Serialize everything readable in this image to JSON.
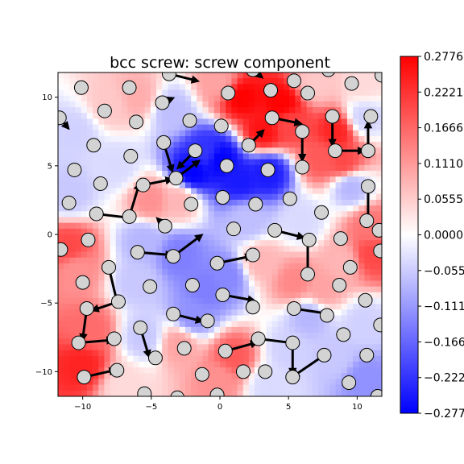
{
  "chart_data": {
    "type": "heatmap",
    "title": "bcc screw: screw component",
    "xlim": [
      -11.8,
      11.8
    ],
    "ylim": [
      -11.8,
      11.8
    ],
    "x_ticks": [
      -10,
      -5,
      0,
      5,
      10
    ],
    "y_ticks": [
      10,
      5,
      0,
      -5,
      -10
    ],
    "x_tick_labels": [
      "−10",
      "−5",
      "0",
      "5",
      "10"
    ],
    "y_tick_labels": [
      "10",
      "5",
      "0",
      "−5",
      "−10"
    ],
    "colorbar": {
      "cmap": "bwr",
      "vmin": -0.2776,
      "vmax": 0.2776,
      "ticks": [
        0.2776,
        0.2221,
        0.1666,
        0.111,
        0.0555,
        0.0,
        -0.0555,
        -0.111,
        -0.1666,
        -0.2221,
        -0.2776
      ],
      "tick_labels": [
        "0.2776",
        "0.2221",
        "0.1666",
        "0.1110",
        "0.0555",
        "0.0000",
        "−0.0555",
        "−0.1110",
        "−0.1666",
        "−0.2221",
        "−0.2776"
      ]
    },
    "colors": {
      "negative": "#0000ff",
      "zero": "#ffffff",
      "positive": "#ff0000",
      "atom_fill": "#d3d3d3",
      "arrow": "#000000"
    },
    "field_samples": [
      {
        "x": 1.5,
        "y": 10.0,
        "v": 0.277
      },
      {
        "x": 4.5,
        "y": 9.5,
        "v": 0.277
      },
      {
        "x": 3.2,
        "y": 7.5,
        "v": 0.26
      },
      {
        "x": 5.0,
        "y": 8.0,
        "v": 0.2
      },
      {
        "x": 8.5,
        "y": 7.5,
        "v": 0.24
      },
      {
        "x": 9.0,
        "y": 5.2,
        "v": 0.2
      },
      {
        "x": 7.5,
        "y": 5.5,
        "v": 0.18
      },
      {
        "x": 0.0,
        "y": 5.5,
        "v": -0.277
      },
      {
        "x": -2.0,
        "y": 4.5,
        "v": -0.277
      },
      {
        "x": 1.5,
        "y": 4.0,
        "v": -0.25
      },
      {
        "x": 3.5,
        "y": 4.5,
        "v": -0.25
      },
      {
        "x": -1.0,
        "y": 6.0,
        "v": -0.22
      },
      {
        "x": -5.0,
        "y": 2.5,
        "v": 0.12
      },
      {
        "x": -3.0,
        "y": 2.5,
        "v": 0.08
      },
      {
        "x": -11.0,
        "y": -1.0,
        "v": 0.2
      },
      {
        "x": -10.5,
        "y": -2.5,
        "v": 0.12
      },
      {
        "x": -3.0,
        "y": -1.5,
        "v": -0.14
      },
      {
        "x": -5.5,
        "y": -0.5,
        "v": -0.08
      },
      {
        "x": -1.0,
        "y": -4.0,
        "v": -0.14
      },
      {
        "x": 0.5,
        "y": -3.0,
        "v": -0.13
      },
      {
        "x": 2.0,
        "y": 1.0,
        "v": -0.07
      },
      {
        "x": 3.0,
        "y": -2.0,
        "v": 0.08
      },
      {
        "x": 5.5,
        "y": -3.5,
        "v": 0.13
      },
      {
        "x": 7.5,
        "y": -4.0,
        "v": 0.1
      },
      {
        "x": 9.0,
        "y": -2.0,
        "v": 0.08
      },
      {
        "x": 11.0,
        "y": 0.5,
        "v": 0.15
      },
      {
        "x": 11.0,
        "y": -1.5,
        "v": 0.2
      },
      {
        "x": 9.5,
        "y": 3.5,
        "v": -0.08
      },
      {
        "x": 10.5,
        "y": 8.5,
        "v": -0.05
      },
      {
        "x": 6.0,
        "y": 1.0,
        "v": -0.04
      },
      {
        "x": -10.0,
        "y": -9.5,
        "v": 0.24
      },
      {
        "x": -9.5,
        "y": -7.0,
        "v": 0.16
      },
      {
        "x": -3.0,
        "y": -8.0,
        "v": 0.1
      },
      {
        "x": -5.5,
        "y": -7.5,
        "v": -0.06
      },
      {
        "x": 1.0,
        "y": -9.0,
        "v": 0.18
      },
      {
        "x": 0.0,
        "y": -10.5,
        "v": 0.12
      },
      {
        "x": -2.0,
        "y": -6.0,
        "v": -0.12
      },
      {
        "x": 5.0,
        "y": -8.5,
        "v": -0.05
      },
      {
        "x": 6.5,
        "y": -6.0,
        "v": -0.08
      },
      {
        "x": 8.5,
        "y": -9.0,
        "v": -0.06
      },
      {
        "x": 10.5,
        "y": -10.5,
        "v": -0.12
      },
      {
        "x": 10.5,
        "y": -6.5,
        "v": -0.05
      },
      {
        "x": -8.0,
        "y": 9.5,
        "v": 0.06
      },
      {
        "x": -6.0,
        "y": 10.0,
        "v": 0.09
      },
      {
        "x": -3.5,
        "y": 9.0,
        "v": -0.07
      },
      {
        "x": -10.5,
        "y": 7.5,
        "v": -0.05
      },
      {
        "x": -11.0,
        "y": 3.0,
        "v": -0.06
      },
      {
        "x": -7.5,
        "y": 5.0,
        "v": -0.04
      },
      {
        "x": -6.0,
        "y": -3.5,
        "v": -0.06
      },
      {
        "x": 3.5,
        "y": -11.0,
        "v": -0.04
      },
      {
        "x": -7.0,
        "y": -11.0,
        "v": 0.04
      },
      {
        "x": 0.0,
        "y": 11.0,
        "v": 0.1
      },
      {
        "x": 7.0,
        "y": 11.0,
        "v": 0.06
      },
      {
        "x": 10.5,
        "y": 11.0,
        "v": 0.04
      }
    ],
    "atoms": [
      {
        "x": -10.1,
        "y": 10.7,
        "dx": 0,
        "dy": 0
      },
      {
        "x": -6.6,
        "y": 10.7,
        "dx": 0,
        "dy": 0
      },
      {
        "x": -3.7,
        "y": 11.7,
        "dx": 2.0,
        "dy": -0.5
      },
      {
        "x": 2.4,
        "y": 12.0,
        "dx": 0.6,
        "dy": -0.5
      },
      {
        "x": 5.4,
        "y": 11.2,
        "dx": 0,
        "dy": 0
      },
      {
        "x": 7.9,
        "y": 12.0,
        "dx": 0,
        "dy": 0
      },
      {
        "x": 9.6,
        "y": 11.0,
        "dx": 0,
        "dy": 0
      },
      {
        "x": 11.8,
        "y": 11.6,
        "dx": 0,
        "dy": 0
      },
      {
        "x": -11.7,
        "y": 8.5,
        "dx": 0.6,
        "dy": -0.7
      },
      {
        "x": -8.4,
        "y": 9.0,
        "dx": 0,
        "dy": 0
      },
      {
        "x": -4.2,
        "y": 9.6,
        "dx": 0.7,
        "dy": 0.3
      },
      {
        "x": 0.6,
        "y": 10.3,
        "dx": 0,
        "dy": 0
      },
      {
        "x": 3.7,
        "y": 10.5,
        "dx": 0,
        "dy": 0
      },
      {
        "x": 6.4,
        "y": 10.3,
        "dx": 0,
        "dy": 0
      },
      {
        "x": -6.1,
        "y": 8.2,
        "dx": 0,
        "dy": 0
      },
      {
        "x": -2.2,
        "y": 8.3,
        "dx": 0,
        "dy": 0
      },
      {
        "x": 0.1,
        "y": 7.9,
        "dx": 0,
        "dy": 0
      },
      {
        "x": 3.8,
        "y": 8.5,
        "dx": 2.0,
        "dy": -0.4
      },
      {
        "x": 8.2,
        "y": 8.6,
        "dx": 0,
        "dy": -2.0
      },
      {
        "x": 11.0,
        "y": 8.6,
        "dx": 0,
        "dy": 0
      },
      {
        "x": -9.2,
        "y": 6.5,
        "dx": 0,
        "dy": 0
      },
      {
        "x": -4.1,
        "y": 6.7,
        "dx": 0.6,
        "dy": -2.0
      },
      {
        "x": 2.1,
        "y": 6.5,
        "dx": 1.0,
        "dy": 1.0
      },
      {
        "x": 6.0,
        "y": 7.5,
        "dx": 0,
        "dy": -2.0
      },
      {
        "x": -10.6,
        "y": 4.7,
        "dx": 0,
        "dy": 0
      },
      {
        "x": -6.5,
        "y": 5.7,
        "dx": 0,
        "dy": 0
      },
      {
        "x": -1.8,
        "y": 6.1,
        "dx": -1.2,
        "dy": -1.2
      },
      {
        "x": 0.5,
        "y": 5.0,
        "dx": 0,
        "dy": 0
      },
      {
        "x": 3.5,
        "y": 4.7,
        "dx": 0,
        "dy": 0
      },
      {
        "x": 6.0,
        "y": 4.9,
        "dx": 0,
        "dy": 0
      },
      {
        "x": 8.4,
        "y": 6.1,
        "dx": 2.0,
        "dy": 0
      },
      {
        "x": 10.8,
        "y": 6.1,
        "dx": 0,
        "dy": 2.0
      },
      {
        "x": -8.7,
        "y": 3.7,
        "dx": 0,
        "dy": 0
      },
      {
        "x": -5.6,
        "y": 3.6,
        "dx": 2.0,
        "dy": 0.4
      },
      {
        "x": -3.2,
        "y": 4.1,
        "dx": 1.6,
        "dy": 1.2
      },
      {
        "x": 0.2,
        "y": 2.7,
        "dx": 0,
        "dy": 0
      },
      {
        "x": 2.6,
        "y": 2.2,
        "dx": 0,
        "dy": 0
      },
      {
        "x": 5.1,
        "y": 2.6,
        "dx": 0,
        "dy": 0
      },
      {
        "x": 10.8,
        "y": 3.5,
        "dx": 0,
        "dy": -2.5
      },
      {
        "x": -11.0,
        "y": 2.3,
        "dx": 0,
        "dy": 0
      },
      {
        "x": -9.0,
        "y": 1.5,
        "dx": 2.5,
        "dy": -0.3
      },
      {
        "x": -6.6,
        "y": 1.3,
        "dx": 0.7,
        "dy": 2.3
      },
      {
        "x": -2.1,
        "y": 2.2,
        "dx": 0,
        "dy": 0
      },
      {
        "x": 7.4,
        "y": 1.6,
        "dx": 0,
        "dy": 0
      },
      {
        "x": 10.7,
        "y": 1.0,
        "dx": 0,
        "dy": 0
      },
      {
        "x": -4.0,
        "y": 0.6,
        "dx": -0.5,
        "dy": 0.5
      },
      {
        "x": 1.0,
        "y": 0.4,
        "dx": 0,
        "dy": 0
      },
      {
        "x": 4.0,
        "y": 0.3,
        "dx": 2.0,
        "dy": -0.5
      },
      {
        "x": 6.5,
        "y": -0.4,
        "dx": 0,
        "dy": 0
      },
      {
        "x": -9.6,
        "y": -0.4,
        "dx": 0,
        "dy": 0
      },
      {
        "x": -11.6,
        "y": -1.1,
        "dx": 0,
        "dy": 0
      },
      {
        "x": -6.0,
        "y": -1.3,
        "dx": 2.4,
        "dy": -0.2
      },
      {
        "x": -3.4,
        "y": -1.6,
        "dx": 2.0,
        "dy": 1.5
      },
      {
        "x": -0.2,
        "y": -2.1,
        "dx": 2.4,
        "dy": 0.5
      },
      {
        "x": 2.4,
        "y": -1.5,
        "dx": 0,
        "dy": 0
      },
      {
        "x": 8.8,
        "y": -0.3,
        "dx": 0,
        "dy": 0
      },
      {
        "x": 11.7,
        "y": -1.2,
        "dx": 0,
        "dy": 0
      },
      {
        "x": -8.1,
        "y": -2.4,
        "dx": 0.6,
        "dy": -2.5
      },
      {
        "x": 9.5,
        "y": -2.4,
        "dx": 0,
        "dy": 0
      },
      {
        "x": -10.0,
        "y": -3.5,
        "dx": 0,
        "dy": 0
      },
      {
        "x": -5.1,
        "y": -3.8,
        "dx": 0,
        "dy": 0
      },
      {
        "x": -2.0,
        "y": -3.7,
        "dx": 0,
        "dy": 0
      },
      {
        "x": 6.4,
        "y": -2.9,
        "dx": 0,
        "dy": 2.6
      },
      {
        "x": 8.7,
        "y": -3.7,
        "dx": 0,
        "dy": 0
      },
      {
        "x": 0.2,
        "y": -4.4,
        "dx": 2.2,
        "dy": -0.4
      },
      {
        "x": 2.4,
        "y": -5.3,
        "dx": 0,
        "dy": 0
      },
      {
        "x": 10.6,
        "y": -4.8,
        "dx": 0,
        "dy": 0
      },
      {
        "x": -7.4,
        "y": -4.9,
        "dx": -1.8,
        "dy": -0.6
      },
      {
        "x": -9.7,
        "y": -5.4,
        "dx": -0.3,
        "dy": -2.2
      },
      {
        "x": -3.4,
        "y": -5.8,
        "dx": 2.0,
        "dy": -0.5
      },
      {
        "x": 5.4,
        "y": -5.4,
        "dx": 2.6,
        "dy": -0.4
      },
      {
        "x": 7.8,
        "y": -5.9,
        "dx": 0,
        "dy": 0
      },
      {
        "x": -0.9,
        "y": -6.3,
        "dx": 0,
        "dy": 0
      },
      {
        "x": -5.8,
        "y": -6.8,
        "dx": 0.6,
        "dy": -2.0
      },
      {
        "x": -7.7,
        "y": -7.6,
        "dx": 0,
        "dy": 0
      },
      {
        "x": -10.3,
        "y": -7.9,
        "dx": 2.4,
        "dy": 0.2
      },
      {
        "x": -2.6,
        "y": -8.3,
        "dx": 0,
        "dy": 0
      },
      {
        "x": 2.8,
        "y": -7.6,
        "dx": 2.4,
        "dy": -0.3
      },
      {
        "x": 5.3,
        "y": -7.9,
        "dx": 0,
        "dy": -2.2
      },
      {
        "x": 9.0,
        "y": -7.3,
        "dx": 0,
        "dy": 0
      },
      {
        "x": 10.7,
        "y": -8.8,
        "dx": 0,
        "dy": 0
      },
      {
        "x": -4.7,
        "y": -9.0,
        "dx": 0,
        "dy": 0
      },
      {
        "x": 0.4,
        "y": -8.5,
        "dx": 2.2,
        "dy": 0.6
      },
      {
        "x": 7.6,
        "y": -8.8,
        "dx": -2.2,
        "dy": -1.5
      },
      {
        "x": -7.5,
        "y": -9.9,
        "dx": 0,
        "dy": 0
      },
      {
        "x": -9.9,
        "y": -10.4,
        "dx": 2.2,
        "dy": 0.5
      },
      {
        "x": -1.3,
        "y": -10.2,
        "dx": 0,
        "dy": 0
      },
      {
        "x": 1.7,
        "y": -10.0,
        "dx": 0,
        "dy": 0
      },
      {
        "x": 3.3,
        "y": -10.0,
        "dx": 0,
        "dy": 0
      },
      {
        "x": 5.3,
        "y": -10.4,
        "dx": 0,
        "dy": 0
      },
      {
        "x": 9.4,
        "y": -10.8,
        "dx": 0,
        "dy": 0
      },
      {
        "x": -5.5,
        "y": -11.6,
        "dx": 0,
        "dy": 0
      },
      {
        "x": -3.1,
        "y": -11.9,
        "dx": 0,
        "dy": 0
      },
      {
        "x": -0.2,
        "y": -11.7,
        "dx": 0,
        "dy": 0
      },
      {
        "x": 11.5,
        "y": -11.8,
        "dx": 0,
        "dy": 0
      },
      {
        "x": 11.7,
        "y": -6.6,
        "dx": 0,
        "dy": 0
      },
      {
        "x": 11.6,
        "y": 0.3,
        "dx": 0,
        "dy": 0
      }
    ]
  }
}
